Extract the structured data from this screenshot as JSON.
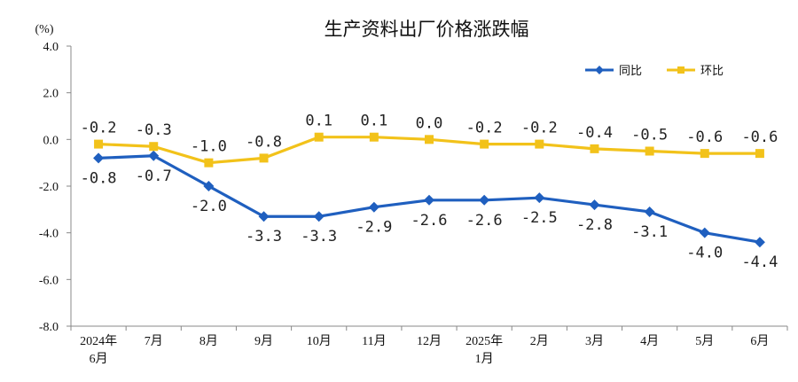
{
  "chart_data": {
    "type": "line",
    "title": "生产资料出厂价格涨跌幅",
    "unit_label": "(%)",
    "ylim": [
      -8.0,
      4.0
    ],
    "y_ticks": [
      "4.0",
      "2.0",
      "0.0",
      "-2.0",
      "-4.0",
      "-6.0",
      "-8.0"
    ],
    "y_tick_values": [
      4,
      2,
      0,
      -2,
      -4,
      -6,
      -8
    ],
    "categories": [
      [
        "2024年",
        "6月"
      ],
      [
        "7月"
      ],
      [
        "8月"
      ],
      [
        "9月"
      ],
      [
        "10月"
      ],
      [
        "11月"
      ],
      [
        "12月"
      ],
      [
        "2025年",
        "1月"
      ],
      [
        "2月"
      ],
      [
        "3月"
      ],
      [
        "4月"
      ],
      [
        "5月"
      ],
      [
        "6月"
      ]
    ],
    "legend_position": "top-right",
    "series": [
      {
        "name": "同比",
        "color": "#1F5FBF",
        "marker": "diamond",
        "values": [
          -0.8,
          -0.7,
          -2.0,
          -3.3,
          -3.3,
          -2.9,
          -2.6,
          -2.6,
          -2.5,
          -2.8,
          -3.1,
          -4.0,
          -4.4
        ],
        "labels": [
          "-0.8",
          "-0.7",
          "-2.0",
          "-3.3",
          "-3.3",
          "-2.9",
          "-2.6",
          "-2.6",
          "-2.5",
          "-2.8",
          "-3.1",
          "-4.0",
          "-4.4"
        ]
      },
      {
        "name": "环比",
        "color": "#F2C21A",
        "marker": "square",
        "values": [
          -0.2,
          -0.3,
          -1.0,
          -0.8,
          0.1,
          0.1,
          0.0,
          -0.2,
          -0.2,
          -0.4,
          -0.5,
          -0.6,
          -0.6
        ],
        "labels": [
          "-0.2",
          "-0.3",
          "-1.0",
          "-0.8",
          "0.1",
          "0.1",
          "0.0",
          "-0.2",
          "-0.2",
          "-0.4",
          "-0.5",
          "-0.6",
          "-0.6"
        ]
      }
    ]
  }
}
